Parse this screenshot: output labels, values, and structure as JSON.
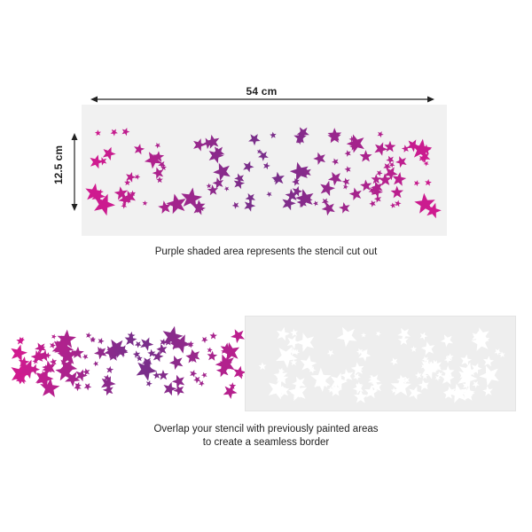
{
  "dimensions": {
    "width_label": "54 cm",
    "height_label": "12.5 cm"
  },
  "captions": {
    "top": "Purple shaded area represents the stencil cut out",
    "bottom_line1": "Overlap your stencil with previously painted areas",
    "bottom_line2": "to create a seamless border"
  },
  "colors": {
    "star_magenta": "#d11a8f",
    "star_purple": "#7a2e8a",
    "stencil_sheet": "#f1f1f1",
    "cutout_white": "#ffffff",
    "arrow": "#222222"
  }
}
